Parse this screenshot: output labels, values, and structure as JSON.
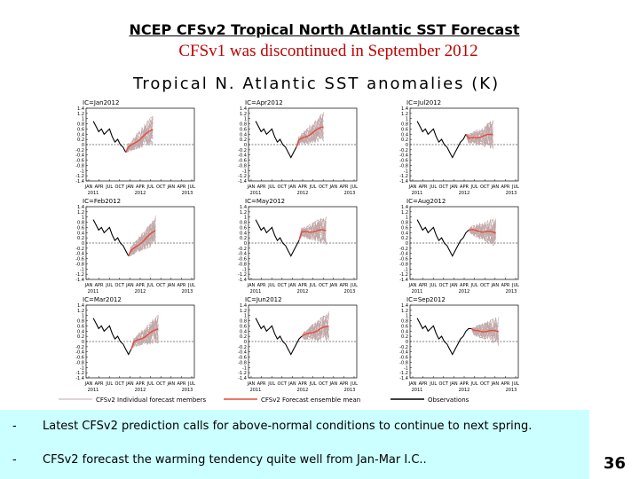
{
  "slide": {
    "title": "NCEP CFSv2 Tropical North Atlantic SST Forecast",
    "subtitle": "CFSv1 was discontinued in September 2012",
    "bullets": [
      "Latest CFSv2 prediction calls for above-normal conditions to continue to next spring.",
      "CFSv2 forecast the warming tendency quite well from Jan-Mar I.C.."
    ],
    "page_number": "36",
    "bullet_marker": "-",
    "colors": {
      "observations": "#000000",
      "members": "#c0a8a8",
      "ensemble_mean": "#e8483c",
      "bullet_background": "#ccffff",
      "subtitle": "#c00000"
    }
  },
  "chart_data": {
    "type": "line",
    "title": "Tropical N. Atlantic SST anomalies (K)",
    "layout": "3x3 panel grid, columns left to right, rows top to bottom",
    "panels": [
      {
        "ic": "IC=Jan2012",
        "x_ticks": [
          "JAN",
          "APR",
          "JUL",
          "OCT",
          "JAN",
          "APR",
          "JUL",
          "OCT",
          "JAN",
          "APR",
          "JUL"
        ],
        "years": [
          "2011",
          "2012",
          "2013"
        ],
        "obs_months": 13,
        "forecast_months": 10,
        "mean_start": -0.2,
        "mean_end": 0.6
      },
      {
        "ic": "IC=Apr2012",
        "x_ticks": [
          "JAN",
          "APR",
          "JUL",
          "OCT",
          "JAN",
          "APR",
          "JUL",
          "OCT",
          "JAN",
          "APR",
          "JUL"
        ],
        "years": [
          "2011",
          "2012",
          "2013"
        ],
        "obs_months": 16,
        "forecast_months": 10,
        "mean_start": 0.1,
        "mean_end": 0.7
      },
      {
        "ic": "IC=Jul2012",
        "x_ticks": [
          "JAN",
          "APR",
          "JUL",
          "OCT",
          "JAN",
          "APR",
          "JUL",
          "OCT",
          "JAN",
          "APR",
          "JUL"
        ],
        "years": [
          "2011",
          "2012",
          "2013"
        ],
        "obs_months": 19,
        "forecast_months": 10,
        "mean_start": 0.2,
        "mean_end": 0.4
      },
      {
        "ic": "IC=Feb2012",
        "x_ticks": [
          "JAN",
          "APR",
          "JUL",
          "OCT",
          "JAN",
          "APR",
          "JUL",
          "OCT",
          "JAN",
          "APR",
          "JUL"
        ],
        "years": [
          "2011",
          "2012",
          "2013"
        ],
        "obs_months": 14,
        "forecast_months": 10,
        "mean_start": -0.4,
        "mean_end": 0.5
      },
      {
        "ic": "IC=May2012",
        "x_ticks": [
          "JAN",
          "APR",
          "JUL",
          "OCT",
          "JAN",
          "APR",
          "JUL",
          "OCT",
          "JAN",
          "APR",
          "JUL"
        ],
        "years": [
          "2011",
          "2012",
          "2013"
        ],
        "obs_months": 17,
        "forecast_months": 10,
        "mean_start": 0.4,
        "mean_end": 0.5
      },
      {
        "ic": "IC=Aug2012",
        "x_ticks": [
          "JAN",
          "APR",
          "JUL",
          "OCT",
          "JAN",
          "APR",
          "JUL",
          "OCT",
          "JAN",
          "APR",
          "JUL"
        ],
        "years": [
          "2011",
          "2012",
          "2013"
        ],
        "obs_months": 20,
        "forecast_months": 10,
        "mean_start": 0.5,
        "mean_end": 0.4
      },
      {
        "ic": "IC=Mar2012",
        "x_ticks": [
          "JAN",
          "APR",
          "JUL",
          "OCT",
          "JAN",
          "APR",
          "JUL",
          "OCT",
          "JAN",
          "APR",
          "JUL"
        ],
        "years": [
          "2011",
          "2012",
          "2013"
        ],
        "obs_months": 15,
        "forecast_months": 10,
        "mean_start": -0.1,
        "mean_end": 0.5
      },
      {
        "ic": "IC=Jun2012",
        "x_ticks": [
          "JAN",
          "APR",
          "JUL",
          "OCT",
          "JAN",
          "APR",
          "JUL",
          "OCT",
          "JAN",
          "APR",
          "JUL"
        ],
        "years": [
          "2011",
          "2012",
          "2013"
        ],
        "obs_months": 18,
        "forecast_months": 10,
        "mean_start": 0.2,
        "mean_end": 0.6
      },
      {
        "ic": "IC=Sep2012",
        "x_ticks": [
          "JAN",
          "APR",
          "JUL",
          "OCT",
          "JAN",
          "APR",
          "JUL",
          "OCT",
          "JAN",
          "APR",
          "JUL"
        ],
        "years": [
          "2011",
          "2012",
          "2013"
        ],
        "obs_months": 21,
        "forecast_months": 10,
        "mean_start": 0.4,
        "mean_end": 0.4
      }
    ],
    "observations": [
      0.9,
      0.7,
      0.5,
      0.6,
      0.4,
      0.5,
      0.6,
      0.3,
      0.1,
      0.2,
      0.0,
      -0.1,
      -0.3,
      -0.5,
      -0.3,
      -0.1,
      0.1,
      0.2,
      0.4,
      0.5,
      0.5,
      0.4
    ],
    "y_ticks": [
      "1.4",
      "1.2",
      "1",
      "0.8",
      "0.6",
      "0.4",
      "0.2",
      "0",
      "-0.2",
      "-0.4",
      "-0.6",
      "-0.8",
      "-1",
      "-1.2",
      "-1.4"
    ],
    "ylim": [
      -1.4,
      1.4
    ],
    "legend": [
      {
        "label": "CFSv2 Individual forecast members",
        "color": "#c0a8a8"
      },
      {
        "label": "CFSv2 Forecast ensemble mean",
        "color": "#e8483c"
      },
      {
        "label": "Observations",
        "color": "#000000"
      }
    ],
    "legend_position": "bottom"
  }
}
